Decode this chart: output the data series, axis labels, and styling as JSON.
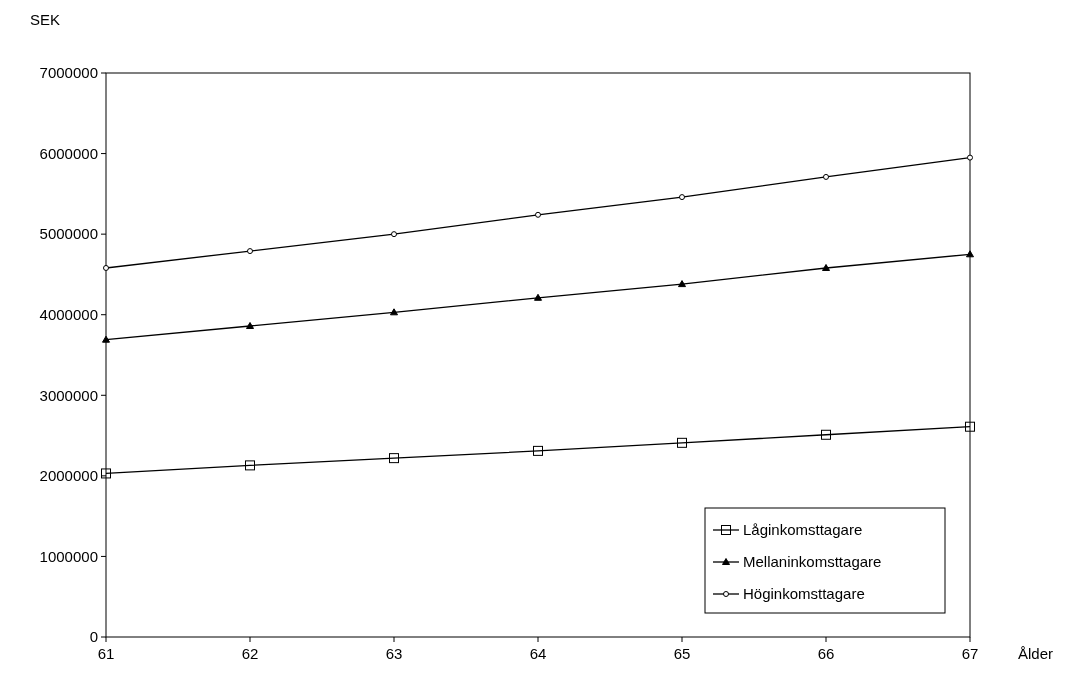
{
  "chart_data": {
    "type": "line",
    "ylabel": "SEK",
    "xlabel": "Ålder",
    "x": [
      61,
      62,
      63,
      64,
      65,
      66,
      67
    ],
    "xlim": [
      61,
      67
    ],
    "xticks": [
      61,
      62,
      63,
      64,
      65,
      66,
      67
    ],
    "ylim": [
      0,
      7000000
    ],
    "yticks": [
      0,
      1000000,
      2000000,
      3000000,
      4000000,
      5000000,
      6000000,
      7000000
    ],
    "grid": false,
    "legend": "bottom right",
    "line_style": "solid",
    "series": [
      {
        "name": "Låginkomsttagare",
        "color": "#000000",
        "marker": "square",
        "values": [
          2030000,
          2130000,
          2220000,
          2310000,
          2410000,
          2510000,
          2610000
        ]
      },
      {
        "name": "Mellaninkomsttagare",
        "color": "#000000",
        "marker": "triangle",
        "values": [
          3690000,
          3860000,
          4030000,
          4210000,
          4380000,
          4580000,
          4750000
        ]
      },
      {
        "name": "Höginkomsttagare",
        "color": "#000000",
        "marker": "circle",
        "values": [
          4580000,
          4790000,
          5000000,
          5240000,
          5460000,
          5710000,
          5950000
        ]
      }
    ]
  }
}
